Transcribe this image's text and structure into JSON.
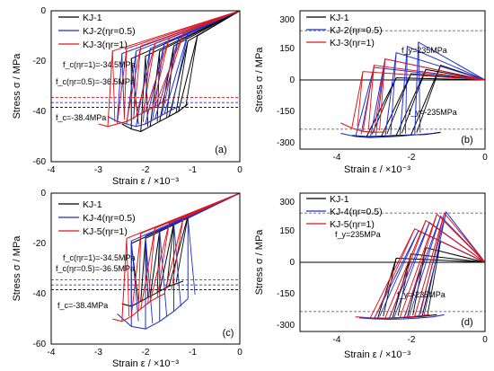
{
  "colors": {
    "black": "#000000",
    "blue": "#1f2fd6",
    "red": "#e0161b",
    "gray": "#777777"
  },
  "chart_data": [
    {
      "panel_label": "(a)",
      "type": "line",
      "xlabel": "Strain ε / ×10⁻³",
      "ylabel": "Stress σ / MPa",
      "xlim": [
        -4,
        0
      ],
      "ylim": [
        -60,
        0
      ],
      "xticks": [
        "-4",
        "-3",
        "-2",
        "-1",
        "0"
      ],
      "yticks": [
        "0",
        "-20",
        "-40",
        "-60"
      ],
      "legend": [
        "KJ-1",
        "KJ-2(ηr=0.5)",
        "KJ-3(ηr=1)"
      ],
      "legend_placement": "top-left",
      "ref_lines": [
        {
          "y": -34.5,
          "color": "red",
          "label": "f_c(ηr=1)=-34.5MPa"
        },
        {
          "y": -36.5,
          "color": "blue",
          "label": "f_c(ηr=0.5)=-36.5MPa"
        },
        {
          "y": -38.4,
          "color": "black",
          "label": "f_c=-38.4MPa"
        }
      ],
      "series": [
        {
          "name": "KJ-1",
          "color": "black",
          "envelope_x": [
            -2.5,
            -2.3,
            -2.1,
            -1.9,
            -1.7,
            -1.5,
            -1.3,
            -1.1
          ],
          "envelope_y": [
            -45,
            -47,
            -48,
            -46,
            -44,
            -42,
            -40,
            -37
          ],
          "peak_x": [
            -2.3,
            -2.0,
            -1.7,
            -1.4,
            -1.1,
            -0.9
          ],
          "peak_y": [
            -19,
            -18,
            -16,
            -14,
            -12,
            -10
          ]
        },
        {
          "name": "KJ-2(ηr=0.5)",
          "color": "blue",
          "envelope_x": [
            -2.8,
            -2.6,
            -2.4,
            -2.2,
            -2.0,
            -1.8,
            -1.6,
            -1.3
          ],
          "envelope_y": [
            -42,
            -44,
            -45,
            -46,
            -45,
            -43,
            -41,
            -38
          ],
          "peak_x": [
            -2.5,
            -2.2,
            -1.9,
            -1.6,
            -1.3,
            -1.1
          ],
          "peak_y": [
            -17,
            -16,
            -15,
            -13,
            -11,
            -9
          ]
        },
        {
          "name": "KJ-3(ηr=1)",
          "color": "red",
          "envelope_x": [
            -3.0,
            -2.8,
            -2.6,
            -2.4,
            -2.2,
            -2.0,
            -1.8,
            -1.5
          ],
          "envelope_y": [
            -45,
            -46,
            -45,
            -44,
            -42,
            -40,
            -38,
            -35
          ],
          "peak_x": [
            -2.7,
            -2.4,
            -2.1,
            -1.8,
            -1.5,
            -1.2
          ],
          "peak_y": [
            -16,
            -15,
            -14,
            -13,
            -11,
            -9
          ]
        }
      ]
    },
    {
      "panel_label": "(b)",
      "type": "line",
      "xlabel": "Strain ε / ×10⁻³",
      "ylabel": "Stress σ / MPa",
      "xlim": [
        -5,
        0
      ],
      "ylim": [
        -330,
        330
      ],
      "xticks": [
        "-4",
        "-2",
        "0"
      ],
      "yticks": [
        "300",
        "150",
        "0",
        "-150",
        "-300"
      ],
      "legend": [
        "KJ-1",
        "KJ-2(ηr=0.5)",
        "KJ-3(ηr=1)"
      ],
      "legend_placement": "top-left",
      "ref_lines": [
        {
          "y": 235,
          "label": "f_y=235MPa"
        },
        {
          "y": -235,
          "label": "f_y=-235MPa"
        }
      ],
      "series": [
        {
          "name": "KJ-1",
          "color": "black",
          "envelope_x": [
            -3.6,
            -3.2,
            -2.8,
            -2.4,
            -2.0,
            -1.6,
            -1.2
          ],
          "envelope_y": [
            -265,
            -270,
            -268,
            -265,
            -262,
            -260,
            -250
          ],
          "peak_x": [
            -2.4,
            -2.0,
            -1.6,
            -1.2
          ],
          "peak_y": [
            10,
            30,
            50,
            70
          ]
        },
        {
          "name": "KJ-2(ηr=0.5)",
          "color": "blue",
          "envelope_x": [
            -3.9,
            -3.5,
            -3.1,
            -2.7,
            -2.3,
            -1.9,
            -1.4
          ],
          "envelope_y": [
            -255,
            -270,
            -275,
            -272,
            -268,
            -262,
            -255
          ],
          "peak_x": [
            -3.0,
            -2.7,
            -2.4,
            -2.1,
            -1.8
          ],
          "peak_y": [
            60,
            100,
            130,
            160,
            180
          ]
        },
        {
          "name": "KJ-3(ηr=1)",
          "color": "red",
          "envelope_x": [
            -3.9,
            -3.6,
            -3.3,
            -3.0,
            -2.7
          ],
          "envelope_y": [
            -205,
            -230,
            -245,
            -250,
            -248
          ],
          "peak_x": [
            -3.3,
            -3.0,
            -2.7
          ],
          "peak_y": [
            40,
            70,
            100
          ]
        }
      ]
    },
    {
      "panel_label": "(c)",
      "type": "line",
      "xlabel": "Strain ε / ×10⁻³",
      "ylabel": "Stress σ / MPa",
      "xlim": [
        -4,
        0
      ],
      "ylim": [
        -60,
        0
      ],
      "xticks": [
        "-4",
        "-3",
        "-2",
        "-1",
        "0"
      ],
      "yticks": [
        "0",
        "-20",
        "-40",
        "-60"
      ],
      "legend": [
        "KJ-1",
        "KJ-4(ηr=0.5)",
        "KJ-5(ηr=1)"
      ],
      "legend_placement": "top-left",
      "ref_lines": [
        {
          "y": -34.5,
          "color": "red",
          "label": "f_c(ηr=1)=-34.5MPa"
        },
        {
          "y": -36.5,
          "color": "blue",
          "label": "f_c(ηr=0.5)=-36.5MPa"
        },
        {
          "y": -38.4,
          "color": "black",
          "label": "f_c=-38.4MPa"
        }
      ],
      "series": [
        {
          "name": "KJ-1",
          "color": "black",
          "envelope_x": [
            -2.5,
            -2.3,
            -2.1,
            -1.9,
            -1.7,
            -1.5,
            -1.2
          ],
          "envelope_y": [
            -44,
            -45,
            -43,
            -41,
            -39,
            -37,
            -35
          ],
          "peak_x": [
            -2.3,
            -2.0,
            -1.7,
            -1.4,
            -1.1
          ],
          "peak_y": [
            -20,
            -18,
            -15,
            -12,
            -9
          ]
        },
        {
          "name": "KJ-4(ηr=0.5)",
          "color": "blue",
          "envelope_x": [
            -2.6,
            -2.3,
            -2.0,
            -1.7,
            -1.4,
            -1.1
          ],
          "envelope_y": [
            -48,
            -53,
            -54,
            -51,
            -47,
            -42
          ],
          "peak_x": [
            -2.3,
            -2.0,
            -1.7,
            -1.4,
            -1.1
          ],
          "peak_y": [
            -19,
            -17,
            -15,
            -12,
            -10
          ]
        },
        {
          "name": "KJ-5(ηr=1)",
          "color": "red",
          "envelope_x": [
            -2.7,
            -2.5,
            -2.3,
            -2.1,
            -1.9,
            -1.6
          ],
          "envelope_y": [
            -50,
            -51,
            -49,
            -46,
            -43,
            -40
          ],
          "peak_x": [
            -2.4,
            -2.1,
            -1.8,
            -1.5,
            -1.2
          ],
          "peak_y": [
            -18,
            -16,
            -14,
            -12,
            -10
          ]
        }
      ]
    },
    {
      "panel_label": "(d)",
      "type": "line",
      "xlabel": "Strain ε / ×10⁻³",
      "ylabel": "Stress σ / MPa",
      "xlim": [
        -5,
        0
      ],
      "ylim": [
        -330,
        330
      ],
      "xticks": [
        "-4",
        "-2",
        "0"
      ],
      "yticks": [
        "300",
        "150",
        "0",
        "-150",
        "-300"
      ],
      "legend": [
        "KJ-1",
        "KJ-4(ηr=0.5)",
        "KJ-5(ηr=1)"
      ],
      "legend_placement": "top-left",
      "ref_lines": [
        {
          "y": 235,
          "label": "f_y=235MPa"
        },
        {
          "y": -235,
          "label": "f_y=-235MPa"
        }
      ],
      "series": [
        {
          "name": "KJ-1",
          "color": "black",
          "envelope_x": [
            -3.3,
            -2.9,
            -2.5,
            -2.1,
            -1.7,
            -1.3
          ],
          "envelope_y": [
            -265,
            -268,
            -266,
            -263,
            -258,
            -250
          ],
          "peak_x": [
            -2.4,
            -2.0,
            -1.6,
            -1.2
          ],
          "peak_y": [
            20,
            40,
            70,
            100
          ]
        },
        {
          "name": "KJ-4(ηr=0.5)",
          "color": "blue",
          "envelope_x": [
            -3.4,
            -3.0,
            -2.6,
            -2.2,
            -1.8,
            -1.4,
            -1.1
          ],
          "envelope_y": [
            -265,
            -270,
            -272,
            -270,
            -266,
            -260,
            -250
          ],
          "peak_x": [
            -1.8,
            -1.5,
            -1.2,
            -1.05
          ],
          "peak_y": [
            150,
            190,
            220,
            240
          ]
        },
        {
          "name": "KJ-5(ηr=1)",
          "color": "red",
          "envelope_x": [
            -3.5,
            -3.1,
            -2.7,
            -2.3,
            -1.9,
            -1.5
          ],
          "envelope_y": [
            -260,
            -265,
            -266,
            -263,
            -258,
            -250
          ],
          "peak_x": [
            -1.9,
            -1.6,
            -1.3,
            -1.1
          ],
          "peak_y": [
            160,
            200,
            230,
            235
          ]
        }
      ]
    }
  ]
}
